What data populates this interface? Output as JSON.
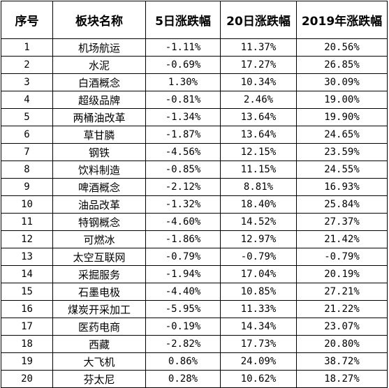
{
  "table": {
    "headers": [
      "序号",
      "板块名称",
      "5日涨跌幅",
      "20日涨跌幅",
      "2019年涨跌幅"
    ],
    "rows": [
      [
        "1",
        "机场航运",
        "-1.11%",
        "11.37%",
        "20.56%"
      ],
      [
        "2",
        "水泥",
        "-0.69%",
        "17.27%",
        "26.85%"
      ],
      [
        "3",
        "白酒概念",
        "1.30%",
        "10.34%",
        "30.09%"
      ],
      [
        "4",
        "超级品牌",
        "-0.81%",
        "2.46%",
        "19.00%"
      ],
      [
        "5",
        "两桶油改革",
        "-1.34%",
        "13.64%",
        "19.90%"
      ],
      [
        "6",
        "草甘膦",
        "-1.87%",
        "13.64%",
        "24.65%"
      ],
      [
        "7",
        "钢铁",
        "-4.56%",
        "12.15%",
        "23.59%"
      ],
      [
        "8",
        "饮料制造",
        "-0.85%",
        "11.15%",
        "24.55%"
      ],
      [
        "9",
        "啤酒概念",
        "-2.12%",
        "8.81%",
        "16.93%"
      ],
      [
        "10",
        "油品改革",
        "-1.32%",
        "18.40%",
        "25.84%"
      ],
      [
        "11",
        "特钢概念",
        "-4.60%",
        "14.52%",
        "27.37%"
      ],
      [
        "12",
        "可燃冰",
        "-1.86%",
        "12.97%",
        "21.42%"
      ],
      [
        "13",
        "太空互联网",
        "-0.79%",
        "-0.79%",
        "-0.79%"
      ],
      [
        "14",
        "采掘服务",
        "-1.94%",
        "17.04%",
        "20.19%"
      ],
      [
        "15",
        "石墨电极",
        "-4.40%",
        "10.85%",
        "27.21%"
      ],
      [
        "16",
        "煤炭开采加工",
        "-5.95%",
        "11.33%",
        "21.22%"
      ],
      [
        "17",
        "医药电商",
        "-0.19%",
        "14.34%",
        "23.07%"
      ],
      [
        "18",
        "西藏",
        "-2.82%",
        "17.73%",
        "20.80%"
      ],
      [
        "19",
        "大飞机",
        "0.86%",
        "24.09%",
        "38.72%"
      ],
      [
        "20",
        "芬太尼",
        "0.28%",
        "10.62%",
        "18.27%"
      ]
    ]
  }
}
